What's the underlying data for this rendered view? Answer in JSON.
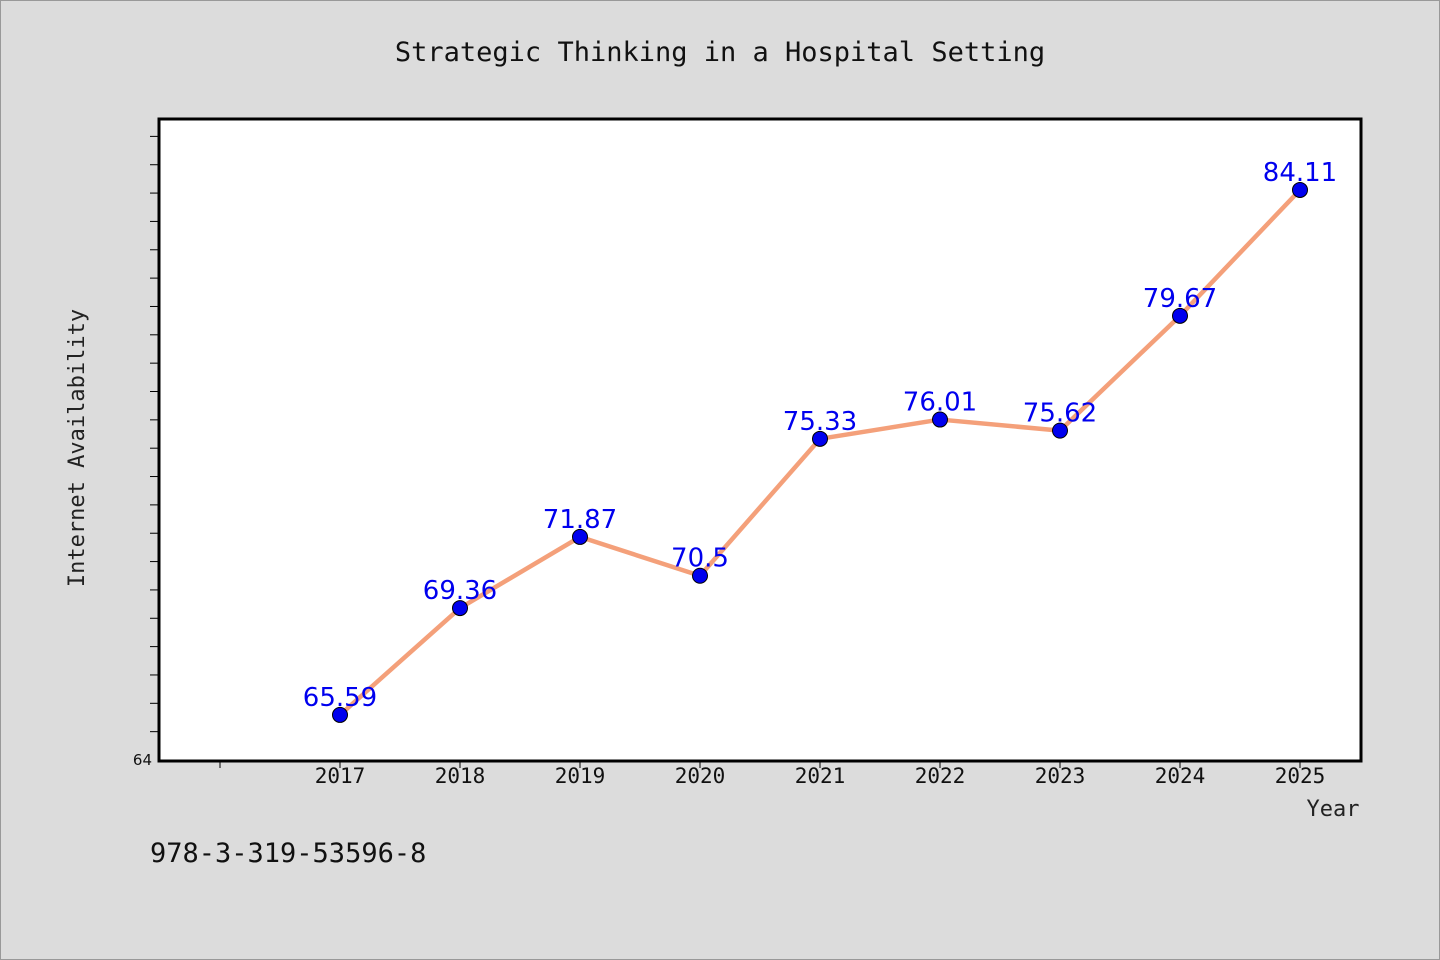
{
  "chart_data": {
    "type": "line",
    "title": "Strategic Thinking in a Hospital Setting",
    "xlabel": "Year",
    "ylabel": "Internet Availability",
    "categories": [
      "2017",
      "2018",
      "2019",
      "2020",
      "2021",
      "2022",
      "2023",
      "2024",
      "2025"
    ],
    "series": [
      {
        "values": [
          65.59,
          69.36,
          71.87,
          70.5,
          75.33,
          76.01,
          75.62,
          79.67,
          84.11
        ],
        "data_labels": [
          "65.59",
          "69.36",
          "71.87",
          "70.5",
          "75.33",
          "76.01",
          "75.62",
          "79.67",
          "84.11"
        ],
        "line_color": "#f4a07a",
        "marker_color": "#0000ee"
      }
    ],
    "ylim": [
      64,
      86
    ],
    "y_tick_labels": [
      "64"
    ],
    "grid": false
  },
  "footer_text": "978-3-319-53596-8"
}
